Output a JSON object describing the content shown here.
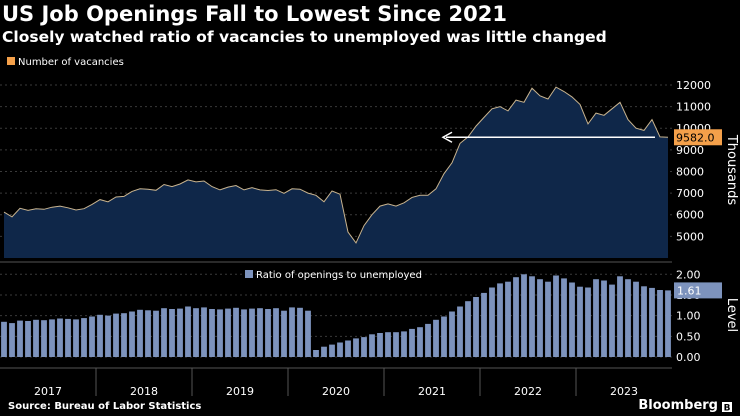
{
  "header": {
    "title": "US Job Openings Fall to Lowest Since 2021",
    "subtitle": "Closely watched ratio of vacancies to unemployed was little changed"
  },
  "footer": {
    "source": "Source: Bureau of Labor Statistics",
    "brand": "Bloomberg"
  },
  "colors": {
    "background": "#000000",
    "area_fill": "#0f2749",
    "area_line": "#c9b48f",
    "legend_orange": "#f4a04a",
    "bars": "#7d93bd",
    "grid": "#3a3a3a",
    "label_box": "#f4a04a",
    "ratio_box": "#7d93bd",
    "arrow": "#ffffff"
  },
  "chart_data": [
    {
      "type": "area",
      "title": "US Job Openings Fall to Lowest Since 2021",
      "legend": "Number of vacancies",
      "ylabel": "Thousands",
      "ylim": [
        4000,
        12600
      ],
      "yticks": [
        5000,
        6000,
        7000,
        8000,
        9000,
        10000,
        11000,
        12000
      ],
      "ytick_labels": [
        "5000",
        "6000",
        "7000",
        "8000",
        "9000",
        "10000",
        "11000",
        "12000"
      ],
      "x_start": "2017-01",
      "x_end": "2023-05",
      "last_value_label": "9582.0",
      "annotation": "arrow pointing left at last value level",
      "values": [
        6120,
        5900,
        6300,
        6200,
        6280,
        6250,
        6350,
        6400,
        6320,
        6220,
        6280,
        6480,
        6700,
        6600,
        6820,
        6850,
        7080,
        7200,
        7180,
        7130,
        7400,
        7300,
        7420,
        7610,
        7520,
        7560,
        7300,
        7150,
        7280,
        7350,
        7150,
        7250,
        7150,
        7120,
        7160,
        6990,
        7200,
        7180,
        7000,
        6900,
        6600,
        7100,
        6950,
        5200,
        4700,
        5500,
        6000,
        6400,
        6500,
        6400,
        6550,
        6800,
        6900,
        6900,
        7200,
        7900,
        8400,
        9300,
        9600,
        10100,
        10500,
        10900,
        11000,
        10800,
        11300,
        11200,
        11850,
        11500,
        11350,
        11900,
        11700,
        11450,
        11100,
        10200,
        10700,
        10600,
        10900,
        11200,
        10400,
        10000,
        9900,
        10400,
        9600,
        9582
      ],
      "series": [
        {
          "name": "Number of vacancies"
        }
      ]
    },
    {
      "type": "bar",
      "legend": "Ratio of openings to unemployed",
      "ylabel": "Level",
      "ylim": [
        0,
        2.2
      ],
      "yticks": [
        0,
        0.5,
        1.0,
        1.5,
        2.0
      ],
      "ytick_labels": [
        "0.00",
        "0.50",
        "1.00",
        "1.50",
        "2.00"
      ],
      "last_value_label": "1.61",
      "values": [
        0.85,
        0.82,
        0.88,
        0.87,
        0.9,
        0.89,
        0.91,
        0.93,
        0.92,
        0.91,
        0.94,
        0.98,
        1.02,
        1.0,
        1.05,
        1.06,
        1.1,
        1.14,
        1.13,
        1.12,
        1.18,
        1.16,
        1.17,
        1.22,
        1.18,
        1.2,
        1.16,
        1.15,
        1.17,
        1.19,
        1.15,
        1.17,
        1.18,
        1.16,
        1.18,
        1.12,
        1.2,
        1.19,
        1.12,
        0.17,
        0.25,
        0.3,
        0.35,
        0.4,
        0.45,
        0.48,
        0.55,
        0.58,
        0.6,
        0.6,
        0.62,
        0.68,
        0.72,
        0.8,
        0.9,
        0.98,
        1.1,
        1.22,
        1.35,
        1.45,
        1.55,
        1.68,
        1.78,
        1.82,
        1.93,
        2.0,
        1.95,
        1.88,
        1.82,
        1.97,
        1.9,
        1.8,
        1.7,
        1.68,
        1.88,
        1.85,
        1.75,
        1.95,
        1.88,
        1.82,
        1.71,
        1.67,
        1.62,
        1.61
      ],
      "series": [
        {
          "name": "Ratio of openings to unemployed"
        }
      ]
    }
  ],
  "x_axis": {
    "labels": [
      "2017",
      "2018",
      "2019",
      "2020",
      "2021",
      "2022",
      "2023"
    ]
  }
}
